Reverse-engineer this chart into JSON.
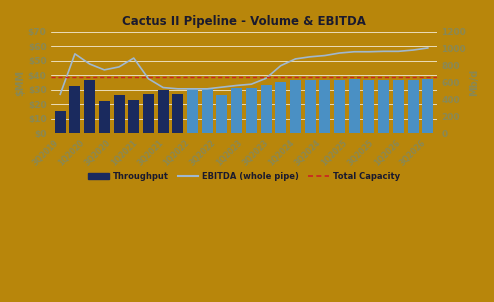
{
  "title": "Cactus II Pipeline - Volume & EBITDA",
  "background_color": "#B8860B",
  "plot_bg_color": "#B8860B",
  "bar_labels": [
    "3Q2019",
    "1Q2020",
    "3Q2020",
    "1Q2021",
    "3Q2021",
    "1Q2022",
    "3Q2022",
    "1Q2023",
    "3Q2023",
    "1Q2024",
    "3Q2024",
    "1Q2025",
    "3Q2025",
    "1Q2026",
    "3Q2026"
  ],
  "n_bars": 26,
  "bar_heights": [
    15.5,
    32.5,
    37.0,
    22.5,
    26.5,
    23.0,
    27.0,
    29.5,
    27.0,
    30.5,
    31.5,
    26.5,
    31.0,
    31.5,
    33.5,
    35.5,
    36.5,
    37.0,
    36.5,
    37.0,
    37.5,
    36.5,
    37.0,
    37.0,
    37.0,
    37.5
  ],
  "n_dark_bars": 9,
  "ebitda_mbd": [
    460,
    940,
    820,
    750,
    785,
    890,
    645,
    540,
    525,
    525,
    525,
    545,
    565,
    580,
    650,
    800,
    880,
    905,
    920,
    950,
    965,
    965,
    970,
    970,
    985,
    1010
  ],
  "capacity_mbd": 670,
  "ylabel_left": "$MM",
  "ylabel_right": "Mb/d",
  "ylim_left": [
    0,
    70
  ],
  "ylim_right": [
    0,
    1200
  ],
  "yticks_left": [
    0,
    10,
    20,
    30,
    40,
    50,
    60,
    70
  ],
  "yticks_left_labels": [
    "$0",
    "$10",
    "$20",
    "$30",
    "$40",
    "$50",
    "$60",
    "$70"
  ],
  "yticks_right": [
    0,
    200,
    400,
    600,
    800,
    1000,
    1200
  ],
  "grid_color": "#ffffff",
  "bar_color_dark": "#1a2a5e",
  "bar_color_light": "#4a90c4",
  "ebitda_color": "#a0b8d0",
  "capacity_color": "#cc2222",
  "title_color": "#1a1a2e",
  "tick_color": "#888855",
  "legend_text_color": "#1a1a2e"
}
